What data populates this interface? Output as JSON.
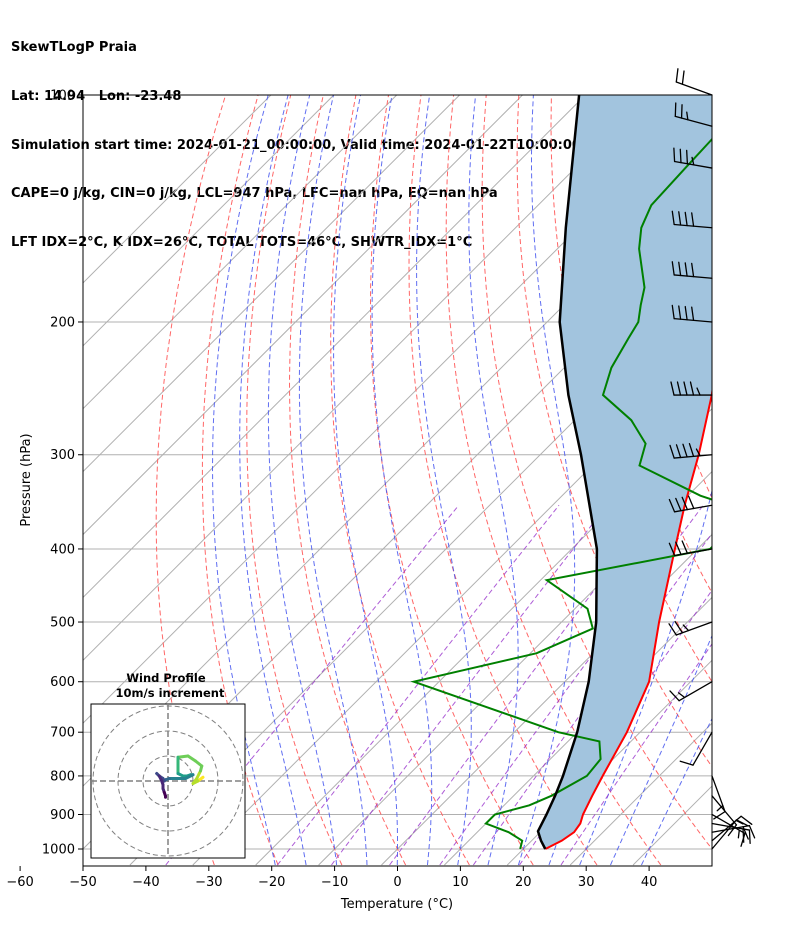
{
  "header": {
    "line1": "SkewTLogP Praia",
    "line2": "Lat: 14.94   Lon: -23.48",
    "line3": "Simulation start time: 2024-01-21_00:00:00, Valid time: 2024-01-22T10:00:00.00",
    "line4": "CAPE=0 j/kg, CIN=0 j/kg, LCL=947 hPa, LFC=nan hPa, EQ=nan hPa",
    "line5": "LFT IDX=2°C, K IDX=26°C, TOTAL TOTS=46°C, SHWTR_IDX=1°C"
  },
  "chart_data": {
    "type": "skewt",
    "xlabel": "Temperature (°C)",
    "ylabel": "Pressure (hPa)",
    "xlim": [
      -60,
      40
    ],
    "ylim": [
      1050,
      100
    ],
    "y_scale": "log",
    "grid": true,
    "x_ticks": [
      -60,
      -50,
      -40,
      -30,
      -20,
      -10,
      0,
      10,
      20,
      30,
      40
    ],
    "x_tick_labels": [
      "−60",
      "−50",
      "−40",
      "−30",
      "−20",
      "−10",
      "0",
      "10",
      "20",
      "30",
      "40"
    ],
    "y_ticks": [
      1000,
      900,
      800,
      700,
      600,
      500,
      400,
      300,
      200,
      100
    ],
    "y_tick_labels": [
      "1000",
      "900",
      "800",
      "700",
      "600",
      "500",
      "400",
      "300",
      "200",
      "100"
    ],
    "temperature": {
      "color": "#ff0000",
      "p": [
        1000,
        975,
        950,
        925,
        900,
        850,
        800,
        700,
        600,
        500,
        400,
        350,
        300,
        250,
        200,
        150,
        125,
        100
      ],
      "t": [
        23.5,
        24.8,
        25.4,
        25.0,
        24.0,
        22.5,
        21.0,
        17.9,
        13.4,
        5.5,
        -3.6,
        -9.0,
        -14.8,
        -22.2,
        -32.2,
        -41.3,
        -47.5,
        -56.0
      ]
    },
    "dewpoint": {
      "color": "#008000",
      "p": [
        1000,
        975,
        950,
        925,
        900,
        875,
        850,
        800,
        760,
        720,
        700,
        600,
        550,
        510,
        480,
        440,
        400,
        380,
        360,
        340,
        310,
        290,
        270,
        250,
        230,
        210,
        200,
        190,
        180,
        160,
        150,
        140,
        125,
        110,
        100
      ],
      "td": [
        19.5,
        18.5,
        15.0,
        10.0,
        10.0,
        14.0,
        16.0,
        18.5,
        18.0,
        15.0,
        7.0,
        -24.0,
        -9.0,
        -4.0,
        -8.0,
        -19.0,
        2.0,
        2.0,
        4.0,
        -8.0,
        -22.5,
        -25.0,
        -31.0,
        -39.5,
        -42.5,
        -44.5,
        -45.5,
        -47.8,
        -50.0,
        -57.0,
        -60.0,
        -62.0,
        -62.5,
        -63.0,
        -63.0
      ]
    },
    "parcel_profile": {
      "color": "#000000",
      "p": [
        1000,
        975,
        947,
        900,
        850,
        800,
        700,
        600,
        500,
        400,
        300,
        250,
        200,
        150,
        100
      ],
      "t": [
        23.5,
        21.5,
        19.5,
        18.2,
        16.6,
        14.7,
        10.0,
        3.8,
        -4.5,
        -16.0,
        -33.5,
        -45.0,
        -58.0,
        -72.0,
        -91.0
      ]
    },
    "shading": {
      "between": [
        "temperature",
        "parcel_profile"
      ],
      "color": "#a2c4de",
      "label": ""
    },
    "dry_adiabats_theta_c": [
      -30,
      -20,
      -10,
      0,
      10,
      20,
      30,
      40,
      50,
      60,
      70,
      80,
      90,
      100,
      110,
      120,
      130,
      140,
      150
    ],
    "moist_adiabats_t_c": [
      -20,
      -15,
      -10,
      -5,
      0,
      5,
      10,
      15,
      20,
      25,
      30,
      35,
      40
    ],
    "mixing_ratio_lines_gkg": [
      0.2,
      1,
      2,
      4,
      7,
      10,
      16,
      24
    ],
    "isotherm_spacing_c": 10,
    "wind_barbs": {
      "units": "kt",
      "p": [
        1000,
        975,
        950,
        925,
        900,
        850,
        800,
        700,
        600,
        500,
        400,
        350,
        300,
        250,
        200,
        175,
        150,
        125,
        110,
        100
      ],
      "speed": [
        10,
        15,
        20,
        20,
        18,
        10,
        15,
        10,
        15,
        25,
        30,
        40,
        45,
        45,
        40,
        40,
        40,
        35,
        25,
        20
      ],
      "dir": [
        40,
        50,
        80,
        100,
        120,
        140,
        160,
        210,
        240,
        250,
        260,
        260,
        265,
        270,
        275,
        275,
        275,
        280,
        285,
        290
      ]
    },
    "hodograph": {
      "title_line1": "Wind Profile",
      "title_line2": "10m/s increment",
      "ring_spacing_ms": 10,
      "rings": 3,
      "u": [
        14,
        12,
        10,
        11.5,
        12.5,
        13,
        13.5,
        11,
        8,
        4,
        4,
        4,
        4,
        6,
        7.5,
        9,
        10,
        9,
        7,
        2,
        0.5,
        -1,
        -1.5,
        -1.5,
        -2,
        -3.5,
        -4.5,
        -3.5,
        -2.5,
        -2,
        -2,
        -1.5,
        -1,
        -1
      ],
      "v": [
        1.5,
        0,
        -1,
        1,
        3,
        4,
        6,
        8,
        10,
        9.5,
        7,
        5,
        3,
        2,
        2,
        2.5,
        2.5,
        2,
        1,
        1,
        1,
        0.5,
        0,
        0,
        1,
        2,
        3,
        2,
        0,
        -1.5,
        -3,
        -4.5,
        -6,
        -6.5
      ],
      "colormap": "viridis"
    }
  }
}
